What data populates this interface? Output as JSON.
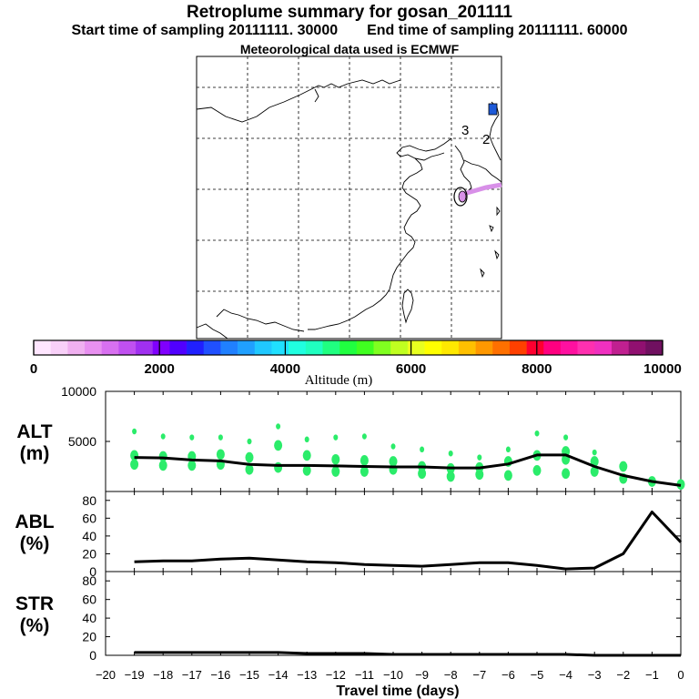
{
  "header": {
    "title": "Retroplume summary for gosan_201111",
    "start_label": "Start time of sampling 20111111. 30000",
    "end_label": "End time of sampling 20111111. 60000",
    "met_label": "Meteorological data used is ECMWF"
  },
  "map": {
    "release_labels": [
      "3",
      "2"
    ],
    "colors": {
      "plume": "#d890e8",
      "point": "#1e5ad8"
    }
  },
  "colorbar": {
    "ticks": [
      "0",
      "2000",
      "4000",
      "6000",
      "8000",
      "10000"
    ],
    "label": "Altitude (m)",
    "colors": [
      "#ffe6ff",
      "#f8d0f8",
      "#f0b0f0",
      "#e890f0",
      "#d870f0",
      "#c050f0",
      "#a030f0",
      "#8000ff",
      "#5000ff",
      "#2020ff",
      "#2050ff",
      "#2080ff",
      "#20a0ff",
      "#20c8ff",
      "#20e0ff",
      "#20ffe0",
      "#20ffc0",
      "#20ff80",
      "#20ff40",
      "#40ff20",
      "#80ff20",
      "#c0ff20",
      "#e8ff20",
      "#ffff00",
      "#ffe800",
      "#ffc000",
      "#ff9800",
      "#ff7000",
      "#ff4000",
      "#ff0030",
      "#ff0080",
      "#ff10a0",
      "#ff30b0",
      "#f030c0",
      "#c02090",
      "#901070",
      "#701060"
    ]
  },
  "chart_data": [
    {
      "type": "line",
      "name": "ALT",
      "ylabel": "ALT\n(m)",
      "ylabel_lines": [
        "ALT",
        "(m)"
      ],
      "ylim": [
        0,
        10000
      ],
      "yticks": [
        "5000",
        "10000"
      ],
      "x": [
        -19,
        -18,
        -17,
        -16,
        -15,
        -14,
        -13,
        -12,
        -11,
        -10,
        -9,
        -8,
        -7,
        -6,
        -5,
        -4,
        -3,
        -2,
        -1,
        0
      ],
      "values": [
        3400,
        3350,
        3150,
        3050,
        2700,
        2600,
        2600,
        2550,
        2500,
        2450,
        2450,
        2350,
        2350,
        2750,
        3650,
        3650,
        2500,
        1600,
        1000,
        600
      ],
      "clusters": [
        {
          "x": -19,
          "y": [
            6000,
            3600,
            2700
          ]
        },
        {
          "x": -18,
          "y": [
            5500,
            3500,
            2600
          ]
        },
        {
          "x": -17,
          "y": [
            5400,
            3500,
            2600
          ]
        },
        {
          "x": -16,
          "y": [
            5400,
            3700,
            2700
          ]
        },
        {
          "x": -15,
          "y": [
            5000,
            3400,
            2200
          ]
        },
        {
          "x": -14,
          "y": [
            6500,
            4600,
            2400
          ]
        },
        {
          "x": -13,
          "y": [
            5200,
            3600,
            2100
          ]
        },
        {
          "x": -12,
          "y": [
            5400,
            3200,
            2000
          ]
        },
        {
          "x": -11,
          "y": [
            5500,
            3100,
            2000
          ]
        },
        {
          "x": -10,
          "y": [
            4500,
            3000,
            2200
          ]
        },
        {
          "x": -9,
          "y": [
            4200,
            2500,
            1800
          ]
        },
        {
          "x": -8,
          "y": [
            3800,
            2300,
            1500
          ]
        },
        {
          "x": -7,
          "y": [
            3400,
            2400,
            1700
          ]
        },
        {
          "x": -6,
          "y": [
            4200,
            3000,
            1600
          ]
        },
        {
          "x": -5,
          "y": [
            5800,
            3600,
            2100
          ]
        },
        {
          "x": -4,
          "y": [
            5400,
            4000,
            3200,
            1800
          ]
        },
        {
          "x": -3,
          "y": [
            3900,
            3000,
            2000
          ]
        },
        {
          "x": -2,
          "y": [
            2500,
            1300
          ]
        },
        {
          "x": -1,
          "y": [
            1000
          ]
        },
        {
          "x": 0,
          "y": [
            700
          ]
        }
      ]
    },
    {
      "type": "line",
      "name": "ABL",
      "ylabel": "ABL\n(%)",
      "ylabel_lines": [
        "ABL",
        "(%)"
      ],
      "ylim": [
        0,
        90
      ],
      "yticks": [
        "0",
        "20",
        "40",
        "60",
        "80"
      ],
      "x": [
        -19,
        -18,
        -17,
        -16,
        -15,
        -14,
        -13,
        -12,
        -11,
        -10,
        -9,
        -8,
        -7,
        -6,
        -5,
        -4,
        -3,
        -2,
        -1,
        0
      ],
      "values": [
        11,
        12,
        12,
        14,
        15,
        13,
        11,
        10,
        8,
        7,
        6,
        8,
        10,
        10,
        7,
        3,
        4,
        20,
        67,
        33
      ]
    },
    {
      "type": "line",
      "name": "STR",
      "ylabel": "STR\n(%)",
      "ylabel_lines": [
        "STR",
        "(%)"
      ],
      "ylim": [
        0,
        90
      ],
      "yticks": [
        "0",
        "20",
        "40",
        "60",
        "80"
      ],
      "x": [
        -19,
        -18,
        -17,
        -16,
        -15,
        -14,
        -13,
        -12,
        -11,
        -10,
        -9,
        -8,
        -7,
        -6,
        -5,
        -4,
        -3,
        -2,
        -1,
        0
      ],
      "values": [
        3,
        3,
        3,
        3,
        3,
        3,
        2,
        2,
        2,
        1,
        1,
        1,
        1,
        1,
        1,
        1,
        0,
        0,
        0,
        0
      ]
    }
  ],
  "xaxis": {
    "ticks": [
      "−20",
      "−19",
      "−18",
      "−17",
      "−16",
      "−15",
      "−14",
      "−13",
      "−12",
      "−11",
      "−10",
      "−9",
      "−8",
      "−7",
      "−6",
      "−5",
      "−4",
      "−3",
      "−2",
      "−1",
      "0"
    ],
    "label": "Travel time (days)"
  }
}
